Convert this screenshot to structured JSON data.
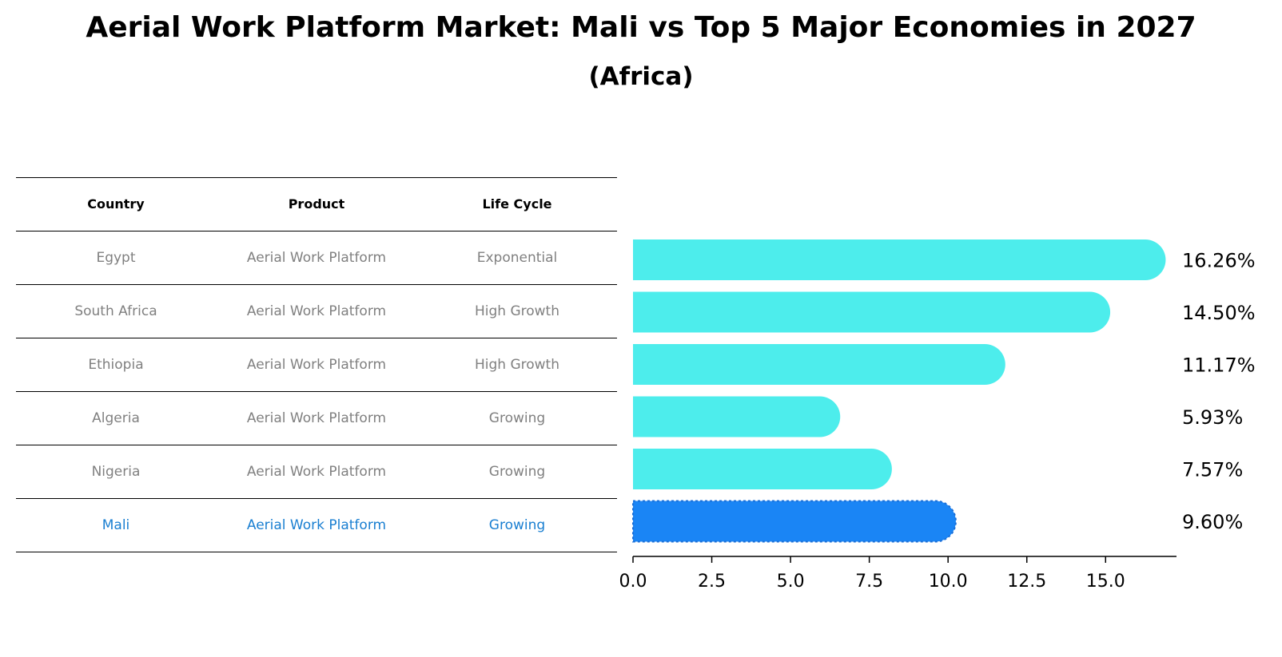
{
  "title": "Aerial Work Platform Market: Mali vs Top 5 Major Economies in 2027",
  "subtitle": "(Africa)",
  "table": {
    "headers": [
      "Country",
      "Product",
      "Life Cycle"
    ],
    "rows": [
      [
        "Egypt",
        "Aerial Work Platform",
        "Exponential"
      ],
      [
        "South Africa",
        "Aerial Work Platform",
        "High Growth"
      ],
      [
        "Ethiopia",
        "Aerial Work Platform",
        "High Growth"
      ],
      [
        "Algeria",
        "Aerial Work Platform",
        "Growing"
      ],
      [
        "Nigeria",
        "Aerial Work Platform",
        "Growing"
      ],
      [
        "Mali",
        "Aerial Work Platform",
        "Growing"
      ]
    ]
  },
  "colors": {
    "bar": "#4dedec",
    "highlight": "#1a85f5",
    "highlight_text": "#1a7fd1"
  },
  "chart_data": {
    "type": "bar",
    "orientation": "horizontal",
    "categories": [
      "Egypt",
      "South Africa",
      "Ethiopia",
      "Algeria",
      "Nigeria",
      "Mali"
    ],
    "values": [
      16.26,
      14.5,
      11.17,
      5.93,
      7.57,
      9.6
    ],
    "value_labels": [
      "16.26%",
      "14.50%",
      "11.17%",
      "5.93%",
      "7.57%",
      "9.60%"
    ],
    "highlight": "Mali",
    "xlim": [
      0,
      17.2
    ],
    "xticks": [
      0.0,
      2.5,
      5.0,
      7.5,
      10.0,
      12.5,
      15.0
    ],
    "xtick_labels": [
      "0.0",
      "2.5",
      "5.0",
      "7.5",
      "10.0",
      "12.5",
      "15.0"
    ]
  }
}
